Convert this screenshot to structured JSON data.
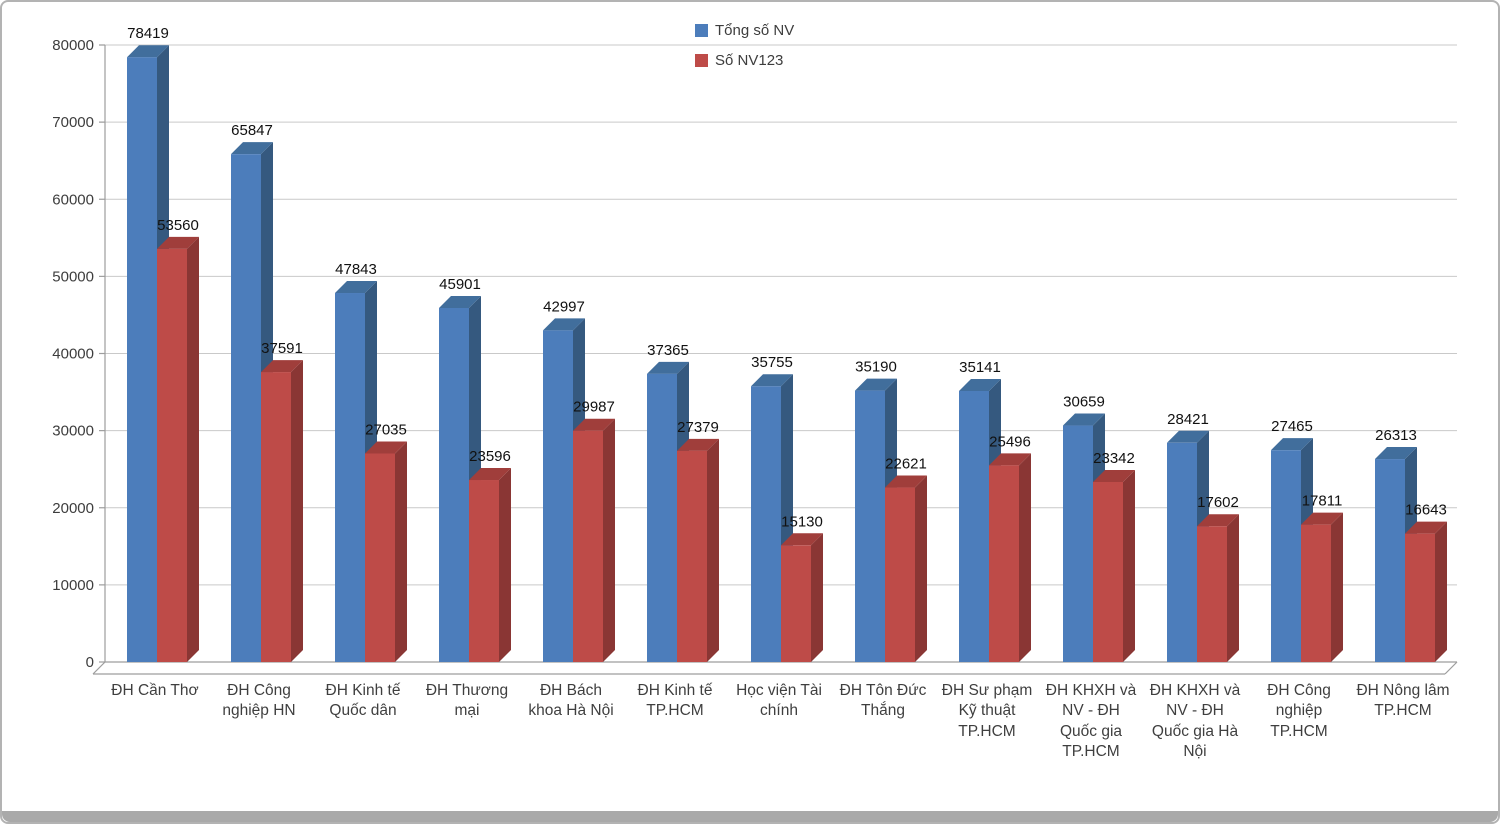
{
  "chart_data": {
    "type": "bar",
    "style": "3d-clustered",
    "title": "",
    "categories": [
      "ĐH Cần Thơ",
      "ĐH Công nghiệp HN",
      "ĐH Kinh tế Quốc dân",
      "ĐH Thương mại",
      "ĐH Bách khoa Hà Nội",
      "ĐH Kinh tế TP.HCM",
      "Học viện Tài chính",
      "ĐH Tôn Đức Thắng",
      "ĐH Sư phạm Kỹ thuật TP.HCM",
      "ĐH KHXH và NV - ĐH Quốc gia TP.HCM",
      "ĐH KHXH và NV - ĐH Quốc gia Hà Nội",
      "ĐH Công nghiệp TP.HCM",
      "ĐH Nông lâm TP.HCM"
    ],
    "series": [
      {
        "name": "Tổng số NV",
        "color": "#4C7DBB",
        "color_side": "#35597F",
        "color_top": "#416E9C",
        "values": [
          78419,
          65847,
          47843,
          45901,
          42997,
          37365,
          35755,
          35190,
          35141,
          30659,
          28421,
          27465,
          26313
        ]
      },
      {
        "name": "Số NV123",
        "color": "#BE4B48",
        "color_side": "#8A3634",
        "color_top": "#A03E3B",
        "values": [
          53560,
          37591,
          27035,
          23596,
          29987,
          27379,
          15130,
          22621,
          25496,
          23342,
          17602,
          17811,
          16643
        ]
      }
    ],
    "ylim": [
      0,
      80000
    ],
    "ytick_step": 10000,
    "ytick_labels": [
      "0",
      "10000",
      "20000",
      "30000",
      "40000",
      "50000",
      "60000",
      "70000",
      "80000"
    ],
    "grid": true,
    "legend_position": "top-center"
  }
}
